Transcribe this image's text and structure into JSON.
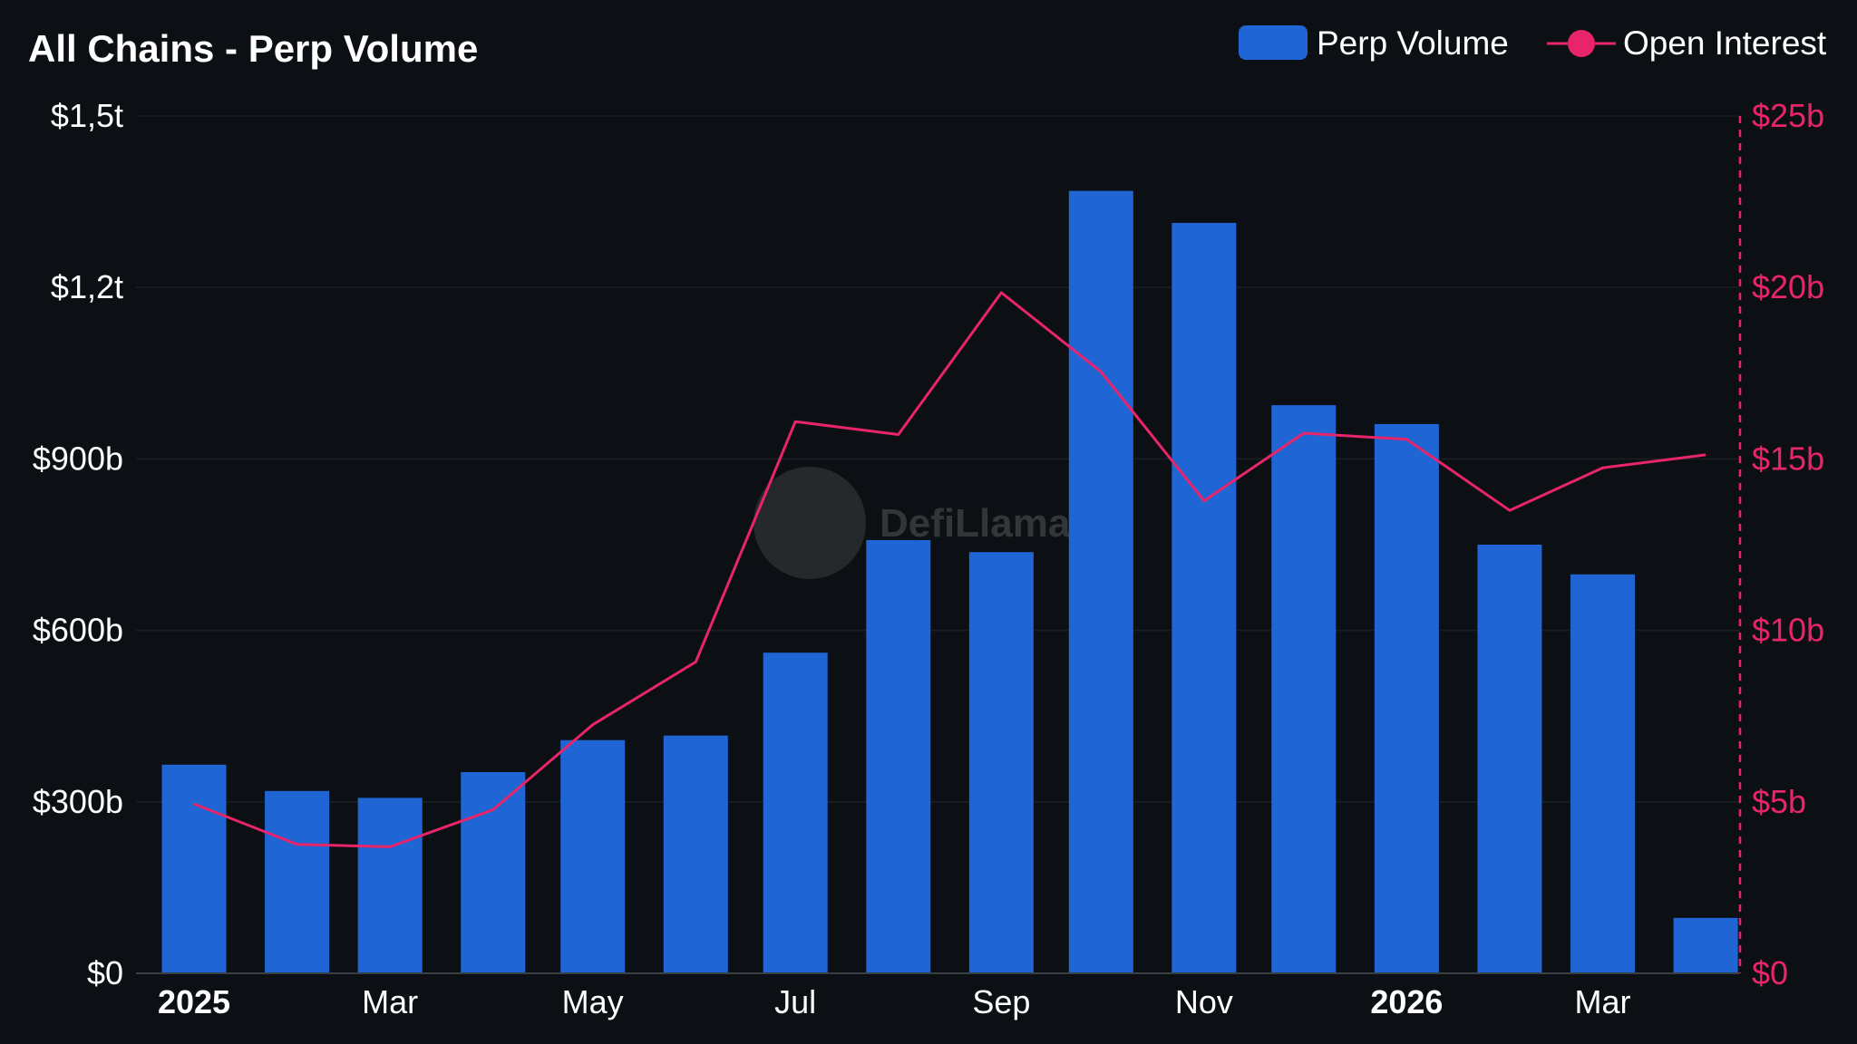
{
  "chart_data": {
    "type": "bar+line",
    "title": "All Chains - Perp Volume",
    "x": [
      "2025-01-01",
      "2025-02-01",
      "2025-03-01",
      "2025-04-01",
      "2025-05-01",
      "2025-06-01",
      "2025-07-01",
      "2025-08-01",
      "2025-09-01",
      "2025-10-01",
      "2025-11-01",
      "2025-12-01",
      "2026-01-01",
      "2026-02-01",
      "2026-03-01",
      "2026-04-01"
    ],
    "x_ticks": [
      {
        "date": "2025-01-01",
        "label": "2025",
        "bold": true
      },
      {
        "date": "2025-03-01",
        "label": "Mar",
        "bold": false
      },
      {
        "date": "2025-05-01",
        "label": "May",
        "bold": false
      },
      {
        "date": "2025-07-01",
        "label": "Jul",
        "bold": false
      },
      {
        "date": "2025-09-01",
        "label": "Sep",
        "bold": false
      },
      {
        "date": "2025-11-01",
        "label": "Nov",
        "bold": false
      },
      {
        "date": "2026-01-01",
        "label": "2026",
        "bold": true
      },
      {
        "date": "2026-03-01",
        "label": "Mar",
        "bold": false
      }
    ],
    "series": [
      {
        "name": "Perp Volume",
        "type": "bar",
        "axis": "left",
        "color": "#1f66d4",
        "unit": "USD billions",
        "values": [
          365,
          319,
          307,
          352,
          408,
          416,
          561,
          758,
          737,
          1369,
          1313,
          994,
          961,
          750,
          698,
          97
        ]
      },
      {
        "name": "Open Interest",
        "type": "line",
        "axis": "right",
        "color": "#e8246a",
        "unit": "USD billions",
        "values": [
          4.94,
          3.76,
          3.69,
          4.77,
          7.25,
          9.08,
          16.09,
          15.71,
          19.85,
          17.54,
          13.78,
          15.75,
          15.57,
          13.5,
          14.74,
          15.12
        ]
      }
    ],
    "y_left": {
      "range": [
        0,
        1500
      ],
      "ticks": [
        0,
        300,
        600,
        900,
        1200,
        1500
      ],
      "tick_labels": [
        "$0",
        "$300b",
        "$600b",
        "$900b",
        "$1,2t",
        "$1,5t"
      ]
    },
    "y_right": {
      "range": [
        0,
        25
      ],
      "ticks": [
        0,
        5,
        10,
        15,
        20,
        25
      ],
      "tick_labels": [
        "$0",
        "$5b",
        "$10b",
        "$15b",
        "$20b",
        "$25b"
      ],
      "color": "#e8246a"
    },
    "grid": true,
    "legend_placement": "top-right",
    "watermark": "DefiLlama"
  },
  "colors": {
    "background": "#0c1014",
    "grid": "#1a1f24"
  }
}
